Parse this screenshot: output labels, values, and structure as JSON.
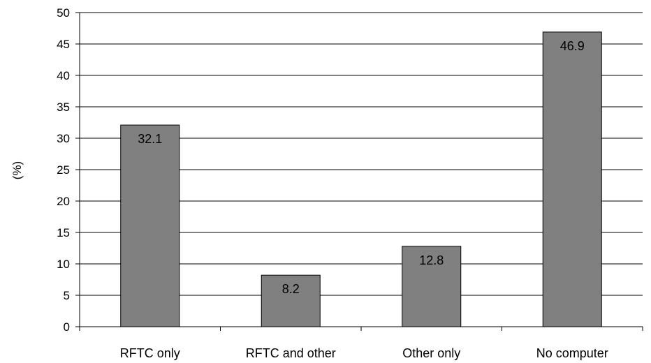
{
  "chart_data": {
    "type": "bar",
    "categories": [
      "RFTC only",
      "RFTC and other",
      "Other only",
      "No computer"
    ],
    "values": [
      32.1,
      8.2,
      12.8,
      46.9
    ],
    "data_labels": [
      "32.1",
      "8.2",
      "12.8",
      "46.9"
    ],
    "title": "",
    "xlabel": "",
    "ylabel": "(%)",
    "ylim": [
      0,
      50
    ],
    "yticks": [
      0,
      5,
      10,
      15,
      20,
      25,
      30,
      35,
      40,
      45,
      50
    ],
    "grid": true,
    "legend": "none",
    "bar_color": "#808080",
    "bar_edge_color": "#000000",
    "grid_color": "#000000"
  }
}
